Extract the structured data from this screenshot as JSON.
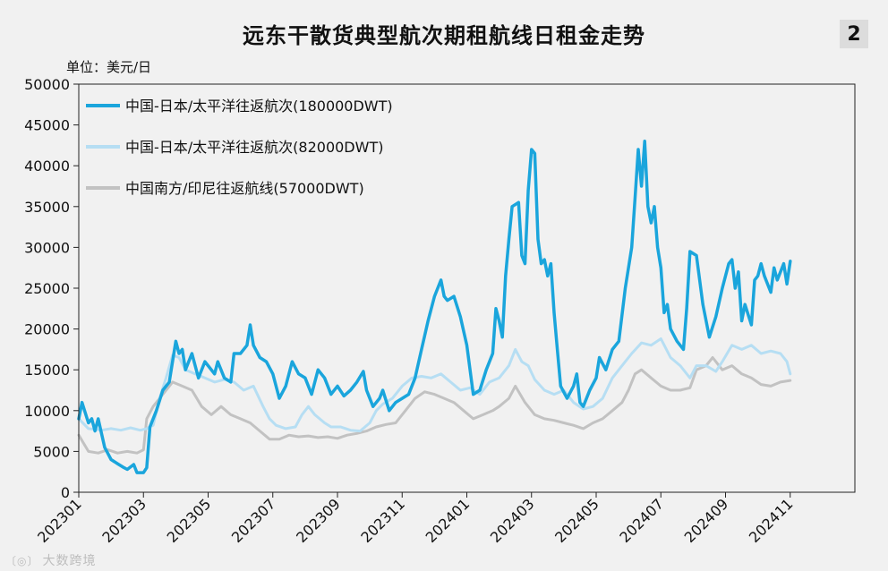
{
  "header": {
    "title": "远东干散货典型航次期租航线日租金走势",
    "badge": "2",
    "unit": "单位：美元/日"
  },
  "watermark": {
    "icon": "logo-icon",
    "text": "大数跨境"
  },
  "chart_data": {
    "type": "line",
    "title": "远东干散货典型航次期租航线日租金走势",
    "ylabel": "单位：美元/日",
    "ylim": [
      0,
      50000
    ],
    "yticks": [
      0,
      5000,
      10000,
      15000,
      20000,
      25000,
      30000,
      35000,
      40000,
      45000,
      50000
    ],
    "xlim": [
      0,
      24
    ],
    "xticks": [
      "202301",
      "202303",
      "202305",
      "202307",
      "202309",
      "202311",
      "202401",
      "202403",
      "202405",
      "202407",
      "202409",
      "202411"
    ],
    "grid": false,
    "legend": "top-left",
    "series": [
      {
        "name": "中国-日本/太平洋往返航次(180000DWT)",
        "color": "#1aa5dc",
        "width": 3.5,
        "points": [
          [
            0.0,
            9000
          ],
          [
            0.1,
            11000
          ],
          [
            0.3,
            8500
          ],
          [
            0.4,
            9000
          ],
          [
            0.5,
            7500
          ],
          [
            0.6,
            9000
          ],
          [
            0.8,
            5500
          ],
          [
            1.0,
            4000
          ],
          [
            1.2,
            3500
          ],
          [
            1.4,
            3000
          ],
          [
            1.5,
            2800
          ],
          [
            1.7,
            3400
          ],
          [
            1.8,
            2400
          ],
          [
            2.0,
            2400
          ],
          [
            2.1,
            3000
          ],
          [
            2.2,
            8000
          ],
          [
            2.4,
            10000
          ],
          [
            2.6,
            12500
          ],
          [
            2.8,
            13500
          ],
          [
            3.0,
            18500
          ],
          [
            3.1,
            17000
          ],
          [
            3.2,
            17500
          ],
          [
            3.3,
            15000
          ],
          [
            3.5,
            17000
          ],
          [
            3.7,
            14000
          ],
          [
            3.9,
            16000
          ],
          [
            4.0,
            15500
          ],
          [
            4.2,
            14500
          ],
          [
            4.3,
            16000
          ],
          [
            4.5,
            14000
          ],
          [
            4.7,
            13500
          ],
          [
            4.8,
            17000
          ],
          [
            5.0,
            17000
          ],
          [
            5.2,
            18000
          ],
          [
            5.3,
            20500
          ],
          [
            5.4,
            18000
          ],
          [
            5.6,
            16500
          ],
          [
            5.8,
            16000
          ],
          [
            6.0,
            14500
          ],
          [
            6.2,
            11500
          ],
          [
            6.4,
            13000
          ],
          [
            6.6,
            16000
          ],
          [
            6.8,
            14500
          ],
          [
            7.0,
            14000
          ],
          [
            7.2,
            12000
          ],
          [
            7.4,
            15000
          ],
          [
            7.6,
            14000
          ],
          [
            7.8,
            12000
          ],
          [
            8.0,
            13000
          ],
          [
            8.2,
            11800
          ],
          [
            8.4,
            12500
          ],
          [
            8.6,
            13500
          ],
          [
            8.8,
            14800
          ],
          [
            8.9,
            12500
          ],
          [
            9.1,
            10500
          ],
          [
            9.3,
            11500
          ],
          [
            9.4,
            12500
          ],
          [
            9.6,
            10000
          ],
          [
            9.8,
            11000
          ],
          [
            10.0,
            11500
          ],
          [
            10.2,
            12000
          ],
          [
            10.4,
            14000
          ],
          [
            10.6,
            17500
          ],
          [
            10.8,
            21000
          ],
          [
            11.0,
            24000
          ],
          [
            11.2,
            26000
          ],
          [
            11.3,
            24000
          ],
          [
            11.4,
            23500
          ],
          [
            11.6,
            24000
          ],
          [
            11.8,
            21500
          ],
          [
            12.0,
            18000
          ],
          [
            12.2,
            12000
          ],
          [
            12.4,
            12500
          ],
          [
            12.6,
            15000
          ],
          [
            12.8,
            17000
          ],
          [
            12.9,
            22500
          ],
          [
            13.0,
            21000
          ],
          [
            13.1,
            19000
          ],
          [
            13.2,
            26500
          ],
          [
            13.3,
            31000
          ],
          [
            13.4,
            35000
          ],
          [
            13.6,
            35500
          ],
          [
            13.7,
            29000
          ],
          [
            13.8,
            28000
          ],
          [
            13.9,
            37000
          ],
          [
            14.0,
            42000
          ],
          [
            14.1,
            41500
          ],
          [
            14.2,
            31000
          ],
          [
            14.3,
            28000
          ],
          [
            14.4,
            28500
          ],
          [
            14.5,
            26500
          ],
          [
            14.6,
            28000
          ],
          [
            14.7,
            22000
          ],
          [
            14.8,
            17500
          ],
          [
            14.9,
            13000
          ],
          [
            15.1,
            11500
          ],
          [
            15.3,
            13000
          ],
          [
            15.4,
            14500
          ],
          [
            15.5,
            11000
          ],
          [
            15.6,
            10500
          ],
          [
            15.8,
            12500
          ],
          [
            16.0,
            14000
          ],
          [
            16.1,
            16500
          ],
          [
            16.3,
            15000
          ],
          [
            16.5,
            17500
          ],
          [
            16.7,
            18500
          ],
          [
            16.9,
            25000
          ],
          [
            17.1,
            30000
          ],
          [
            17.2,
            36000
          ],
          [
            17.3,
            42000
          ],
          [
            17.4,
            37500
          ],
          [
            17.5,
            43000
          ],
          [
            17.6,
            35000
          ],
          [
            17.7,
            33000
          ],
          [
            17.8,
            35000
          ],
          [
            17.9,
            30000
          ],
          [
            18.0,
            27500
          ],
          [
            18.1,
            22000
          ],
          [
            18.2,
            23000
          ],
          [
            18.3,
            20000
          ],
          [
            18.5,
            18500
          ],
          [
            18.7,
            17500
          ],
          [
            18.8,
            22500
          ],
          [
            18.9,
            29500
          ],
          [
            19.1,
            29000
          ],
          [
            19.3,
            23000
          ],
          [
            19.5,
            19000
          ],
          [
            19.7,
            21500
          ],
          [
            19.9,
            25000
          ],
          [
            20.1,
            28000
          ],
          [
            20.2,
            28500
          ],
          [
            20.3,
            25000
          ],
          [
            20.4,
            27000
          ],
          [
            20.5,
            21000
          ],
          [
            20.6,
            23000
          ],
          [
            20.8,
            20500
          ],
          [
            20.9,
            26000
          ],
          [
            21.0,
            26500
          ],
          [
            21.1,
            28000
          ],
          [
            21.2,
            26500
          ],
          [
            21.4,
            24500
          ],
          [
            21.5,
            27500
          ],
          [
            21.6,
            26000
          ],
          [
            21.8,
            28000
          ],
          [
            21.9,
            25500
          ],
          [
            22.0,
            28300
          ]
        ]
      },
      {
        "name": "中国-日本/太平洋往返航次(82000DWT)",
        "color": "#b6def3",
        "width": 3,
        "points": [
          [
            0.0,
            9000
          ],
          [
            0.3,
            7800
          ],
          [
            0.7,
            7600
          ],
          [
            1.0,
            7800
          ],
          [
            1.3,
            7600
          ],
          [
            1.6,
            7900
          ],
          [
            1.9,
            7600
          ],
          [
            2.1,
            7800
          ],
          [
            2.3,
            8200
          ],
          [
            2.5,
            11500
          ],
          [
            2.7,
            14000
          ],
          [
            2.9,
            16800
          ],
          [
            3.1,
            16500
          ],
          [
            3.3,
            15000
          ],
          [
            3.6,
            14500
          ],
          [
            3.9,
            14000
          ],
          [
            4.2,
            13500
          ],
          [
            4.5,
            13800
          ],
          [
            4.8,
            13500
          ],
          [
            5.1,
            12500
          ],
          [
            5.4,
            13000
          ],
          [
            5.7,
            10500
          ],
          [
            5.9,
            9000
          ],
          [
            6.1,
            8200
          ],
          [
            6.4,
            7800
          ],
          [
            6.7,
            8000
          ],
          [
            6.9,
            9500
          ],
          [
            7.1,
            10500
          ],
          [
            7.3,
            9500
          ],
          [
            7.6,
            8500
          ],
          [
            7.8,
            8000
          ],
          [
            8.1,
            8000
          ],
          [
            8.4,
            7600
          ],
          [
            8.7,
            7500
          ],
          [
            9.0,
            8500
          ],
          [
            9.2,
            10000
          ],
          [
            9.4,
            10800
          ],
          [
            9.7,
            11500
          ],
          [
            10.0,
            13000
          ],
          [
            10.3,
            14000
          ],
          [
            10.6,
            14200
          ],
          [
            10.9,
            14000
          ],
          [
            11.2,
            14500
          ],
          [
            11.5,
            13500
          ],
          [
            11.8,
            12500
          ],
          [
            12.1,
            12800
          ],
          [
            12.4,
            12000
          ],
          [
            12.7,
            13500
          ],
          [
            13.0,
            14000
          ],
          [
            13.3,
            15500
          ],
          [
            13.5,
            17500
          ],
          [
            13.7,
            16000
          ],
          [
            13.9,
            15500
          ],
          [
            14.1,
            13800
          ],
          [
            14.4,
            12500
          ],
          [
            14.7,
            12000
          ],
          [
            15.0,
            12500
          ],
          [
            15.3,
            11000
          ],
          [
            15.6,
            10200
          ],
          [
            15.9,
            10500
          ],
          [
            16.2,
            11500
          ],
          [
            16.5,
            14000
          ],
          [
            16.8,
            15500
          ],
          [
            17.1,
            17000
          ],
          [
            17.4,
            18300
          ],
          [
            17.7,
            18000
          ],
          [
            18.0,
            18800
          ],
          [
            18.3,
            16500
          ],
          [
            18.6,
            15500
          ],
          [
            18.9,
            14000
          ],
          [
            19.1,
            15500
          ],
          [
            19.4,
            15500
          ],
          [
            19.7,
            14800
          ],
          [
            19.9,
            16000
          ],
          [
            20.2,
            18000
          ],
          [
            20.5,
            17500
          ],
          [
            20.8,
            18000
          ],
          [
            21.1,
            17000
          ],
          [
            21.4,
            17300
          ],
          [
            21.7,
            17000
          ],
          [
            21.9,
            16000
          ],
          [
            22.0,
            14500
          ]
        ]
      },
      {
        "name": "中国南方/印尼往返航线(57000DWT)",
        "color": "#c2c2c2",
        "width": 3,
        "points": [
          [
            0.0,
            7000
          ],
          [
            0.3,
            5000
          ],
          [
            0.6,
            4800
          ],
          [
            0.9,
            5200
          ],
          [
            1.2,
            4800
          ],
          [
            1.5,
            5000
          ],
          [
            1.8,
            4800
          ],
          [
            2.0,
            5200
          ],
          [
            2.1,
            9000
          ],
          [
            2.3,
            10500
          ],
          [
            2.6,
            12000
          ],
          [
            2.9,
            13500
          ],
          [
            3.2,
            13000
          ],
          [
            3.5,
            12500
          ],
          [
            3.8,
            10500
          ],
          [
            4.1,
            9500
          ],
          [
            4.4,
            10500
          ],
          [
            4.7,
            9500
          ],
          [
            5.0,
            9000
          ],
          [
            5.3,
            8500
          ],
          [
            5.6,
            7500
          ],
          [
            5.9,
            6500
          ],
          [
            6.2,
            6500
          ],
          [
            6.5,
            7000
          ],
          [
            6.8,
            6800
          ],
          [
            7.1,
            6900
          ],
          [
            7.4,
            6700
          ],
          [
            7.7,
            6800
          ],
          [
            8.0,
            6600
          ],
          [
            8.3,
            7000
          ],
          [
            8.6,
            7200
          ],
          [
            8.9,
            7500
          ],
          [
            9.2,
            8000
          ],
          [
            9.5,
            8300
          ],
          [
            9.8,
            8500
          ],
          [
            10.1,
            10000
          ],
          [
            10.4,
            11500
          ],
          [
            10.7,
            12300
          ],
          [
            11.0,
            12000
          ],
          [
            11.3,
            11500
          ],
          [
            11.6,
            11000
          ],
          [
            11.9,
            10000
          ],
          [
            12.2,
            9000
          ],
          [
            12.5,
            9500
          ],
          [
            12.8,
            10000
          ],
          [
            13.0,
            10500
          ],
          [
            13.3,
            11500
          ],
          [
            13.5,
            13000
          ],
          [
            13.8,
            11000
          ],
          [
            14.1,
            9500
          ],
          [
            14.4,
            9000
          ],
          [
            14.7,
            8800
          ],
          [
            15.0,
            8500
          ],
          [
            15.3,
            8200
          ],
          [
            15.6,
            7800
          ],
          [
            15.9,
            8500
          ],
          [
            16.2,
            9000
          ],
          [
            16.5,
            10000
          ],
          [
            16.8,
            11000
          ],
          [
            17.0,
            12500
          ],
          [
            17.2,
            14500
          ],
          [
            17.4,
            15000
          ],
          [
            17.7,
            14000
          ],
          [
            18.0,
            13000
          ],
          [
            18.3,
            12500
          ],
          [
            18.6,
            12500
          ],
          [
            18.9,
            12800
          ],
          [
            19.1,
            15000
          ],
          [
            19.4,
            15500
          ],
          [
            19.6,
            16500
          ],
          [
            19.9,
            15000
          ],
          [
            20.2,
            15500
          ],
          [
            20.5,
            14500
          ],
          [
            20.8,
            14000
          ],
          [
            21.1,
            13200
          ],
          [
            21.4,
            13000
          ],
          [
            21.7,
            13500
          ],
          [
            22.0,
            13700
          ]
        ]
      }
    ]
  }
}
